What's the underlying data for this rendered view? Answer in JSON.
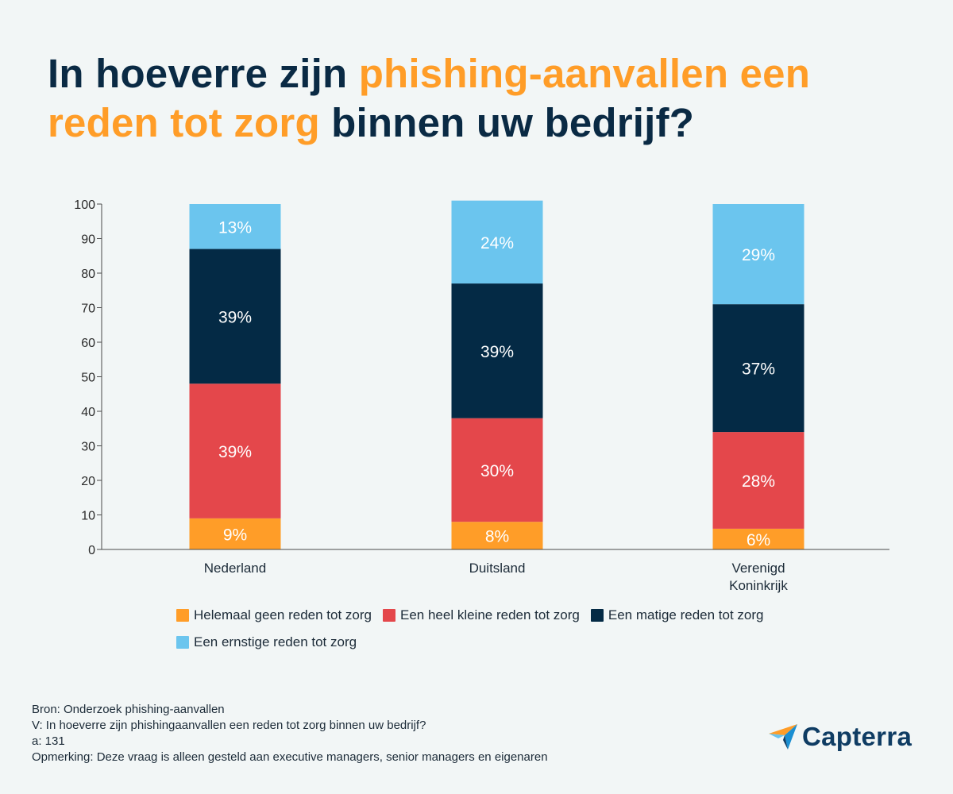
{
  "title": {
    "part1": "In hoeverre zijn ",
    "highlight1": "phishing-aanvallen een reden tot zorg",
    "part2": " binnen uw bedrijf?"
  },
  "colors": {
    "orange": "#ff9d28",
    "red": "#e4474b",
    "navy": "#042a45",
    "lightblue": "#6bc5ee",
    "title": "#0a2a44"
  },
  "chart_data": {
    "type": "bar",
    "stacked": true,
    "title": "In hoeverre zijn phishing-aanvallen een reden tot zorg binnen uw bedrijf?",
    "categories": [
      "Nederland",
      "Duitsland",
      "Verenigd Koninkrijk"
    ],
    "series": [
      {
        "name": "Helemaal geen reden tot zorg",
        "color": "#ff9d28",
        "values": [
          9,
          8,
          6
        ],
        "labels": [
          "9%",
          "8%",
          "6%"
        ]
      },
      {
        "name": "Een heel kleine reden tot zorg",
        "color": "#e4474b",
        "values": [
          39,
          30,
          28
        ],
        "labels": [
          "39%",
          "30%",
          "28%"
        ]
      },
      {
        "name": "Een matige reden tot zorg",
        "color": "#042a45",
        "values": [
          39,
          39,
          37
        ],
        "labels": [
          "39%",
          "39%",
          "37%"
        ]
      },
      {
        "name": "Een ernstige reden tot zorg",
        "color": "#6bc5ee",
        "values": [
          13,
          24,
          29
        ],
        "labels": [
          "13%",
          "24%",
          "29%"
        ]
      }
    ],
    "ylim": [
      0,
      100
    ],
    "yticks": [
      0,
      10,
      20,
      30,
      40,
      50,
      60,
      70,
      80,
      90,
      100
    ],
    "xlabel": "",
    "ylabel": "",
    "legend_position": "bottom"
  },
  "footer": {
    "source": "Bron: Onderzoek phishing-aanvallen",
    "question": "V: In hoeverre zijn phishingaanvallen een reden tot zorg binnen uw bedrijf?",
    "n": "a: 131",
    "note": "Opmerking: Deze vraag is alleen gesteld aan executive managers, senior managers en eigenaren"
  },
  "logo": {
    "text": "Capterra",
    "icon": "capterra-arrow-icon"
  }
}
